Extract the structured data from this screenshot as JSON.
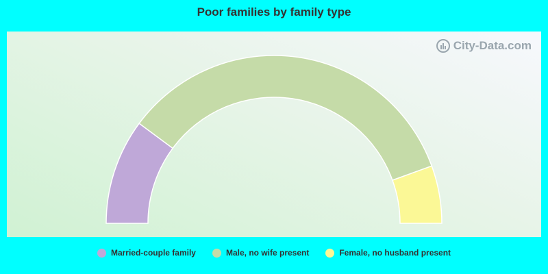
{
  "title": "Poor families by family type",
  "watermark": "City-Data.com",
  "chart_data": {
    "type": "pie",
    "subtype": "semi-donut",
    "title": "Poor families by family type",
    "series": [
      {
        "name": "Married-couple family",
        "value": 20.3,
        "color": "#bfa8d8"
      },
      {
        "name": "Male, no wife present",
        "value": 68.6,
        "color": "#c5dba8"
      },
      {
        "name": "Female, no husband present",
        "value": 11.1,
        "color": "#fbf896"
      }
    ],
    "legend_position": "bottom"
  }
}
